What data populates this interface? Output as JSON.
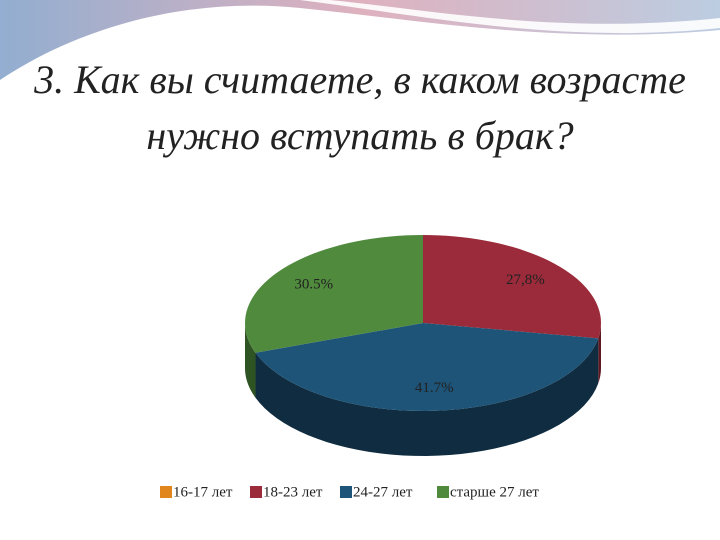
{
  "chart_data": {
    "type": "pie3d",
    "title": "3. Как вы считаете, в каком возрасте нужно вступать в брак?",
    "categories": [
      "16-17 лет",
      "18-23 лет",
      "24-27 лет",
      "старше 27 лет"
    ],
    "values": [
      0,
      27.8,
      41.7,
      30.5
    ],
    "value_labels": [
      null,
      "27,8%",
      "41.7%",
      "30.5%"
    ],
    "colors": [
      "#e0861c",
      "#9b2b3a",
      "#1e5478",
      "#4f8a3d"
    ],
    "side_colors": [
      "#8a5210",
      "#5e1822",
      "#0f2c40",
      "#2f5424"
    ],
    "legend": "bottom"
  }
}
